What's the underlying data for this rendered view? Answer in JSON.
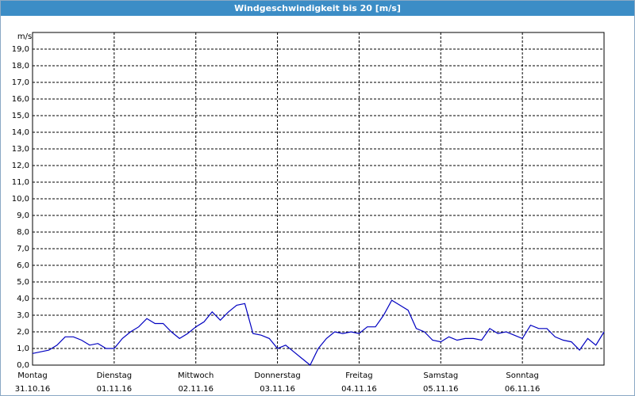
{
  "chart_data": {
    "type": "line",
    "title": "Windgeschwindigkeit bis 20 [m/s]",
    "y_label": "m/s",
    "x": [
      0,
      0.1,
      0.2,
      0.3,
      0.4,
      0.5,
      0.6,
      0.7,
      0.8,
      0.9,
      1,
      1.1,
      1.2,
      1.3,
      1.4,
      1.5,
      1.6,
      1.7,
      1.8,
      1.9,
      2,
      2.1,
      2.2,
      2.3,
      2.4,
      2.5,
      2.6,
      2.7,
      2.8,
      2.9,
      3,
      3.1,
      3.2,
      3.3,
      3.4,
      3.5,
      3.6,
      3.7,
      3.8,
      3.9,
      4,
      4.1,
      4.2,
      4.3,
      4.4,
      4.5,
      4.6,
      4.7,
      4.8,
      4.9,
      5,
      5.1,
      5.2,
      5.3,
      5.4,
      5.5,
      5.6,
      5.7,
      5.8,
      5.9,
      6,
      6.1,
      6.2,
      6.3,
      6.4,
      6.5,
      6.6,
      6.7,
      6.8,
      6.9,
      7
    ],
    "series": [
      {
        "name": "Windgeschwindigkeit",
        "color": "#0000c0",
        "values": [
          0.7,
          0.8,
          0.9,
          1.2,
          1.7,
          1.7,
          1.5,
          1.2,
          1.3,
          1.0,
          1.0,
          1.6,
          2.0,
          2.3,
          2.8,
          2.5,
          2.5,
          2.0,
          1.6,
          1.9,
          2.3,
          2.6,
          3.2,
          2.7,
          3.2,
          3.6,
          3.7,
          1.9,
          1.8,
          1.6,
          1.0,
          1.2,
          0.8,
          0.4,
          0.0,
          1.0,
          1.6,
          2.0,
          1.9,
          2.0,
          1.9,
          2.3,
          2.3,
          3.0,
          3.9,
          3.6,
          3.3,
          2.2,
          2.0,
          1.5,
          1.4,
          1.7,
          1.5,
          1.6,
          1.6,
          1.5,
          2.2,
          1.9,
          2.0,
          1.8,
          1.6,
          2.4,
          2.2,
          2.2,
          1.7,
          1.5,
          1.4,
          0.9,
          1.6,
          1.2,
          2.0
        ]
      }
    ],
    "xlim": [
      0,
      7
    ],
    "xticks": [
      {
        "value": 0,
        "label": "31.10.16"
      },
      {
        "value": 1,
        "label": "01.11.16"
      },
      {
        "value": 2,
        "label": "02.11.16"
      },
      {
        "value": 3,
        "label": "03.11.16"
      },
      {
        "value": 4,
        "label": "04.11.16"
      },
      {
        "value": 5,
        "label": "05.11.16"
      },
      {
        "value": 6,
        "label": "06.11.16"
      }
    ],
    "xtick_weekdays": [
      "Montag",
      "Dienstag",
      "Mittwoch",
      "Donnerstag",
      "Freitag",
      "Samstag",
      "Sonntag"
    ],
    "ylim": [
      0,
      20
    ],
    "yticks": [
      {
        "value": 0,
        "label": "0,0"
      },
      {
        "value": 1,
        "label": "1,0"
      },
      {
        "value": 2,
        "label": "2,0"
      },
      {
        "value": 3,
        "label": "3,0"
      },
      {
        "value": 4,
        "label": "4,0"
      },
      {
        "value": 5,
        "label": "5,0"
      },
      {
        "value": 6,
        "label": "6,0"
      },
      {
        "value": 7,
        "label": "7,0"
      },
      {
        "value": 8,
        "label": "8,0"
      },
      {
        "value": 9,
        "label": "9,0"
      },
      {
        "value": 10,
        "label": "10,0"
      },
      {
        "value": 11,
        "label": "11,0"
      },
      {
        "value": 12,
        "label": "12,0"
      },
      {
        "value": 13,
        "label": "13,0"
      },
      {
        "value": 14,
        "label": "14,0"
      },
      {
        "value": 15,
        "label": "15,0"
      },
      {
        "value": 16,
        "label": "16,0"
      },
      {
        "value": 17,
        "label": "17,0"
      },
      {
        "value": 18,
        "label": "18,0"
      },
      {
        "value": 19,
        "label": "19,0"
      }
    ],
    "grid": true
  }
}
